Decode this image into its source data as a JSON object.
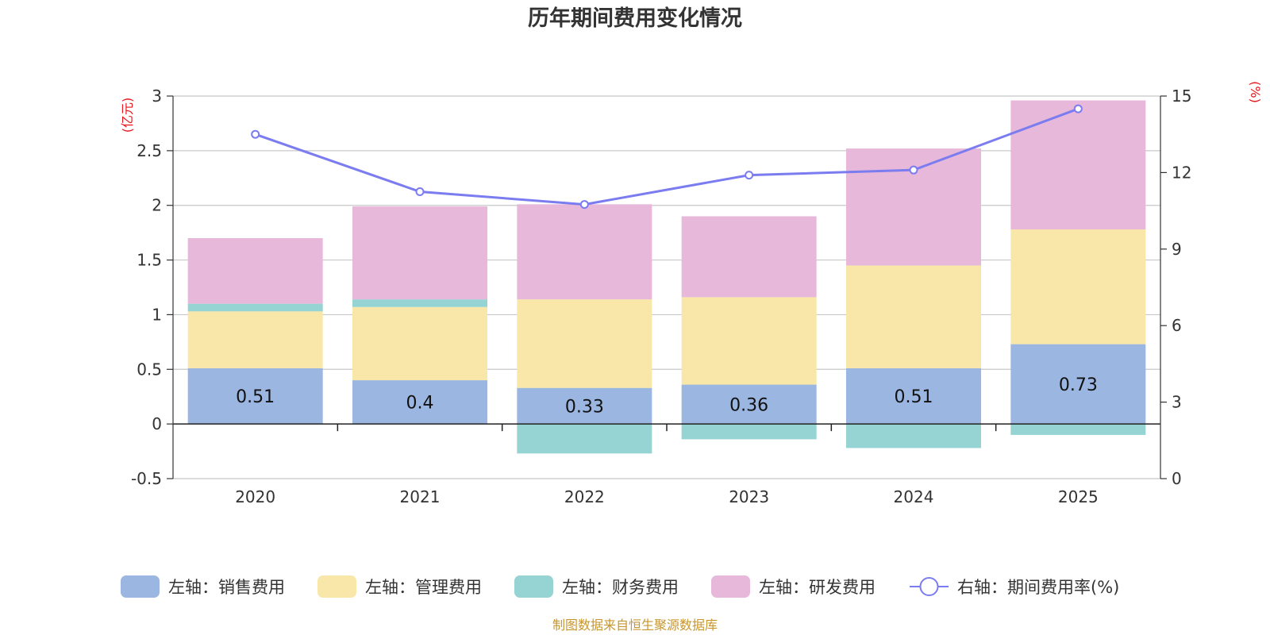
{
  "chart_data": {
    "type": "bar",
    "title": "历年期间费用变化情况",
    "categories": [
      "2020",
      "2021",
      "2022",
      "2023",
      "2024",
      "2025"
    ],
    "left_axis": {
      "unit": "(亿元)",
      "ylim": [
        -0.5,
        3
      ],
      "ticks": [
        "3",
        "2.5",
        "2",
        "1.5",
        "1",
        "0.5",
        "0",
        "-0.5"
      ]
    },
    "right_axis": {
      "unit": "(%)",
      "ylim": [
        0,
        15
      ],
      "ticks": [
        "15",
        "12",
        "9",
        "6",
        "3",
        "0"
      ]
    },
    "series": [
      {
        "name": "左轴：销售费用",
        "type": "bar",
        "color": "#9ab6e1",
        "values": [
          0.51,
          0.4,
          0.33,
          0.36,
          0.51,
          0.73
        ],
        "labels": [
          "0.51",
          "0.4",
          "0.33",
          "0.36",
          "0.51",
          "0.73"
        ]
      },
      {
        "name": "左轴：管理费用",
        "type": "bar",
        "color": "#f8e7a8",
        "values": [
          0.52,
          0.67,
          0.81,
          0.8,
          0.94,
          1.05
        ]
      },
      {
        "name": "左轴：财务费用",
        "type": "bar",
        "color": "#95d4d3",
        "values": [
          0.07,
          0.07,
          -0.27,
          -0.14,
          -0.22,
          -0.1
        ]
      },
      {
        "name": "左轴：研发费用",
        "type": "bar",
        "color": "#e7b8d9",
        "values": [
          0.6,
          0.85,
          0.87,
          0.74,
          1.07,
          1.18
        ]
      },
      {
        "name": "右轴：期间费用率(%)",
        "type": "line",
        "color": "#7b7cf0",
        "values": [
          13.5,
          11.25,
          10.75,
          11.9,
          12.1,
          14.5
        ]
      }
    ],
    "stacked": true,
    "grid": true,
    "legend": "bottom"
  },
  "source": "制图数据来自恒生聚源数据库"
}
